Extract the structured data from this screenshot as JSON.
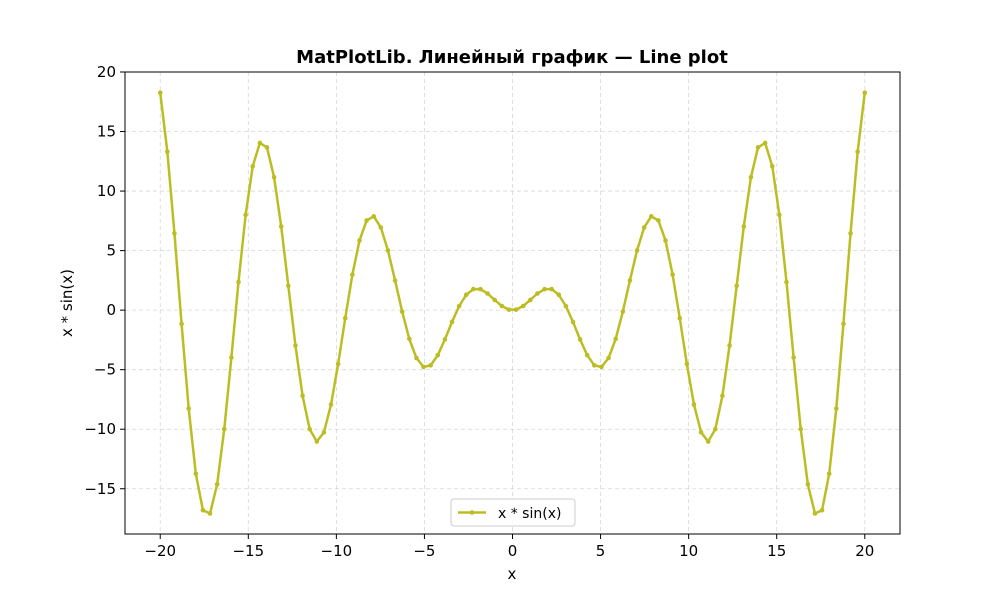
{
  "chart_data": {
    "type": "line",
    "title": "MatPlotLib. Линейный график — Line plot",
    "xlabel": "x",
    "ylabel": "x * sin(x)",
    "xlim": [
      -22,
      22
    ],
    "ylim": [
      -18.8,
      20
    ],
    "x_ticks": [
      -20,
      -15,
      -10,
      -5,
      0,
      5,
      10,
      15,
      20
    ],
    "x_tick_labels": [
      "−20",
      "−15",
      "−10",
      "−5",
      "0",
      "5",
      "10",
      "15",
      "20"
    ],
    "y_ticks": [
      -15,
      -10,
      -5,
      0,
      5,
      10,
      15,
      20
    ],
    "y_tick_labels": [
      "−15",
      "−10",
      "−5",
      "0",
      "5",
      "10",
      "15",
      "20"
    ],
    "grid": true,
    "legend_position": "bottom-center",
    "series": [
      {
        "name": "x * sin(x)",
        "color": "#bcbd22",
        "marker": "point",
        "function": "x * sin(x)",
        "x_range": [
          -20,
          20
        ],
        "num_points": 100
      }
    ]
  }
}
